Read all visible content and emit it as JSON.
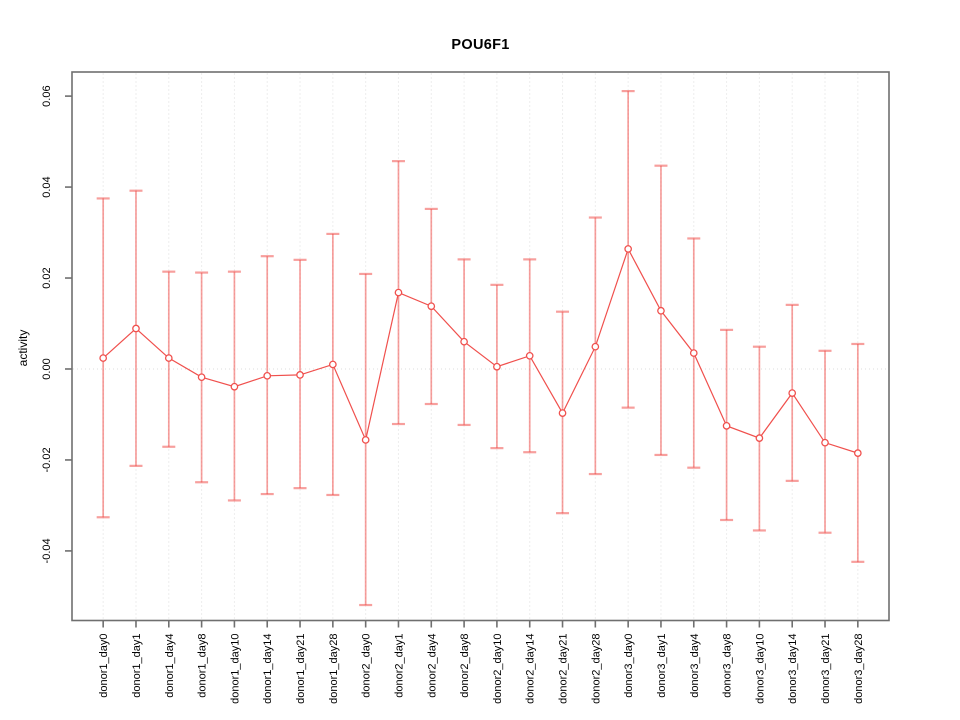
{
  "chart_data": {
    "type": "line",
    "subtype": "points-with-error-bars",
    "title": "POU6F1",
    "xlabel": "",
    "ylabel": "activity",
    "legend": "none",
    "grid": "vertical dotted gridline at every category; dotted horizontal line at y=0",
    "ylim": [
      -0.0553,
      0.0653
    ],
    "yticks": [
      0.06,
      0.04,
      0.02,
      0.0,
      -0.02,
      -0.04
    ],
    "ytick_labels": [
      "0.06",
      "0.04",
      "0.02",
      "0.00",
      "-0.02",
      "-0.04"
    ],
    "categories": [
      "donor1_day0",
      "donor1_day1",
      "donor1_day4",
      "donor1_day8",
      "donor1_day10",
      "donor1_day14",
      "donor1_day21",
      "donor1_day28",
      "donor2_day0",
      "donor2_day1",
      "donor2_day4",
      "donor2_day8",
      "donor2_day10",
      "donor2_day14",
      "donor2_day21",
      "donor2_day28",
      "donor3_day0",
      "donor3_day1",
      "donor3_day4",
      "donor3_day8",
      "donor3_day10",
      "donor3_day14",
      "donor3_day21",
      "donor3_day28"
    ],
    "series": [
      {
        "name": "activity",
        "values": [
          0.0024,
          0.0089,
          0.0024,
          -0.0018,
          -0.0039,
          -0.0015,
          -0.0013,
          0.001,
          -0.0156,
          0.0168,
          0.0138,
          0.006,
          0.0005,
          0.0029,
          -0.0097,
          0.0049,
          0.0264,
          0.0128,
          0.0035,
          -0.0125,
          -0.0152,
          -0.0053,
          -0.0162,
          -0.0185
        ],
        "error_upper": [
          0.0375,
          0.0392,
          0.0214,
          0.0212,
          0.0214,
          0.0248,
          0.024,
          0.0297,
          0.0209,
          0.0457,
          0.0352,
          0.0241,
          0.0185,
          0.0241,
          0.0126,
          0.0333,
          0.0611,
          0.0447,
          0.0287,
          0.0086,
          0.0049,
          0.0141,
          0.004,
          0.0055
        ],
        "error_lower": [
          -0.0326,
          -0.0213,
          -0.0171,
          -0.0249,
          -0.0289,
          -0.0275,
          -0.0262,
          -0.0277,
          -0.0519,
          -0.0121,
          -0.0077,
          -0.0123,
          -0.0174,
          -0.0183,
          -0.0317,
          -0.0231,
          -0.0085,
          -0.0189,
          -0.0217,
          -0.0332,
          -0.0355,
          -0.0246,
          -0.036,
          -0.0424
        ]
      }
    ],
    "colors": {
      "series": "#f0504d",
      "error_bar": "rgba(240,80,77,0.55)",
      "point_fill": "#ffffff",
      "grid": "#dcdcdc",
      "axis": "#6f6f6f",
      "text": "#000000",
      "background": "#ffffff"
    }
  }
}
